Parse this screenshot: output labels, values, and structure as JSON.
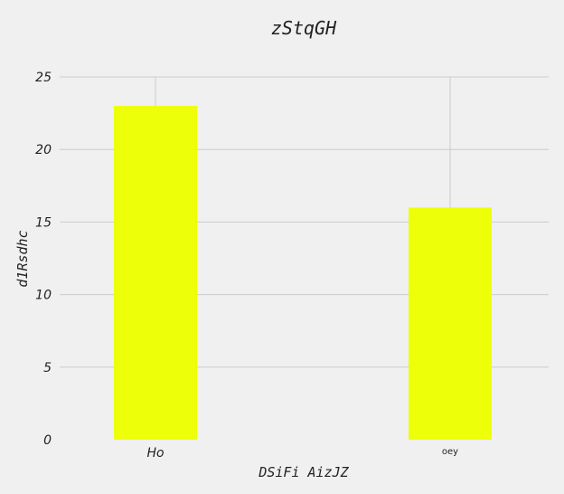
{
  "chart_data": {
    "type": "bar",
    "title": "zStqGH",
    "xlabel": "DSiFi AizJZ",
    "ylabel": "d1Rsdhc",
    "categories": [
      "Ho",
      "oey"
    ],
    "values": [
      23,
      16
    ],
    "ylim": [
      0,
      25
    ],
    "yticks": [
      0,
      5,
      10,
      15,
      20,
      25
    ],
    "grid": true,
    "bar_color": "#eeff0a",
    "background_color": "#f0f0f0",
    "grid_color": "#cbcbcb"
  }
}
